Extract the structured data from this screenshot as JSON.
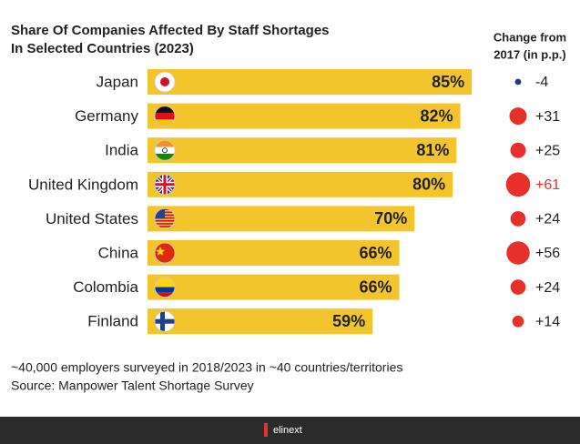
{
  "chart_data": {
    "type": "bar",
    "title": [
      "Share Of Companies Affected By Staff Shortages",
      "In Selected Countries (2023)"
    ],
    "categories": [
      "Japan",
      "Germany",
      "India",
      "United Kingdom",
      "United States",
      "China",
      "Colombia",
      "Finland"
    ],
    "values": [
      85,
      82,
      81,
      80,
      70,
      66,
      66,
      59
    ],
    "value_labels": [
      "85%",
      "82%",
      "81%",
      "80%",
      "70%",
      "66%",
      "66%",
      "59%"
    ],
    "color": "#f2c52c",
    "xlim": [
      0,
      100
    ],
    "change": {
      "title": [
        "Change from",
        "2017 (in p.p.)"
      ],
      "values": [
        -4,
        31,
        25,
        61,
        24,
        56,
        24,
        14
      ],
      "value_labels": [
        "-4",
        "+31",
        "+25",
        "+61",
        "+24",
        "+56",
        "+24",
        "+14"
      ],
      "label_colors": [
        "#222222",
        "#222222",
        "#222222",
        "#e8302a",
        "#222222",
        "#222222",
        "#222222",
        "#222222"
      ],
      "positive_color": "#e8302a",
      "negative_color": "#1f3d7a"
    },
    "notes": [
      "~40,000 employers surveyed in 2018/2023 in ~40 countries/territories",
      "Source: Manpower Talent Shortage Survey"
    ],
    "footer": "elinext"
  }
}
